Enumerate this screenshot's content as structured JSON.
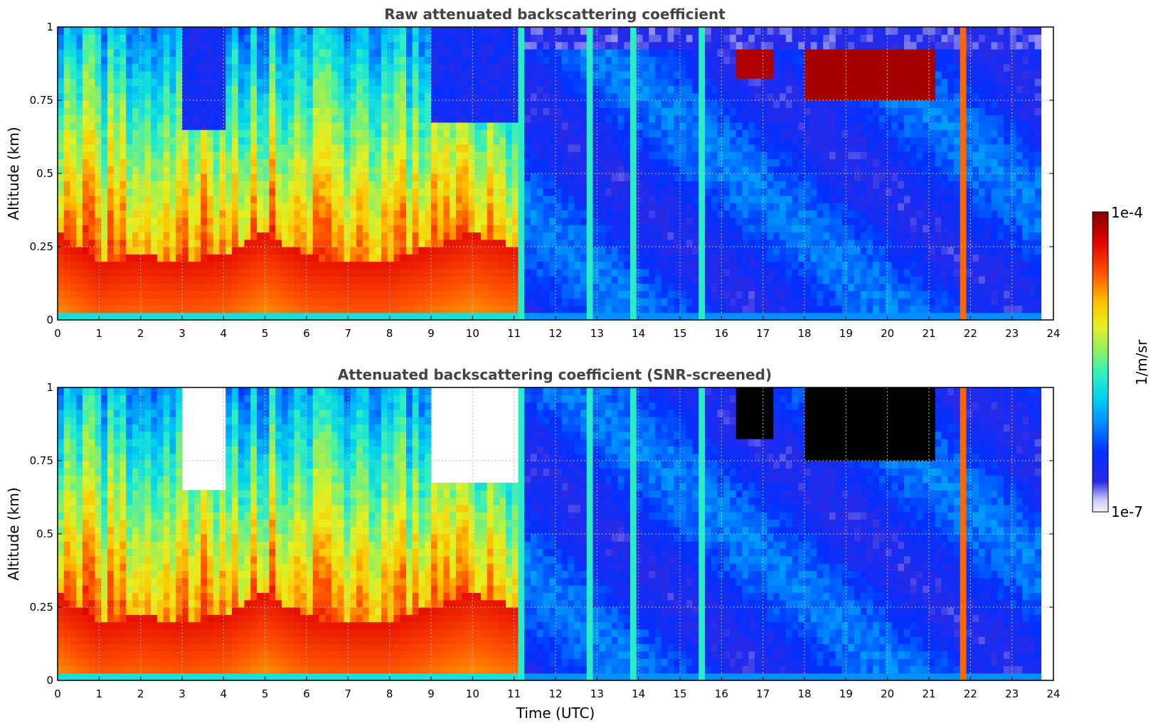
{
  "chart_data": {
    "type": "heatmap",
    "panels": [
      {
        "id": "raw",
        "title": "Raw attenuated backscattering coefficient",
        "ylabel": "Altitude (km)",
        "xlabel": "",
        "xlim": [
          0,
          24
        ],
        "ylim": [
          0,
          1
        ],
        "xticks": [
          "0",
          "1",
          "2",
          "3",
          "4",
          "5",
          "6",
          "7",
          "8",
          "9",
          "10",
          "11",
          "12",
          "13",
          "14",
          "15",
          "16",
          "17",
          "18",
          "19",
          "20",
          "21",
          "22",
          "23",
          "24"
        ],
        "yticks": [
          "0",
          "0.25",
          "0.5",
          "0.75",
          "1"
        ],
        "grid": true
      },
      {
        "id": "screened",
        "title": "Attenuated backscattering coefficient (SNR-screened)",
        "ylabel": "Altitude (km)",
        "xlabel": "Time (UTC)",
        "xlim": [
          0,
          24
        ],
        "ylim": [
          0,
          1
        ],
        "xticks": [
          "0",
          "1",
          "2",
          "3",
          "4",
          "5",
          "6",
          "7",
          "8",
          "9",
          "10",
          "11",
          "12",
          "13",
          "14",
          "15",
          "16",
          "17",
          "18",
          "19",
          "20",
          "21",
          "22",
          "23",
          "24"
        ],
        "yticks": [
          "0",
          "0.25",
          "0.5",
          "0.75",
          "1"
        ],
        "grid": true
      }
    ],
    "colorbar": {
      "label": "1/m/sr",
      "max_label": "1e-4",
      "min_label": "1e-7",
      "scale": "log",
      "range": [
        1e-07,
        0.0001
      ]
    },
    "features": {
      "boundary_layer_top_km": [
        [
          0,
          0.3
        ],
        [
          1,
          0.2
        ],
        [
          2,
          0.22
        ],
        [
          3,
          0.2
        ],
        [
          4,
          0.22
        ],
        [
          5,
          0.3
        ],
        [
          6,
          0.22
        ],
        [
          7,
          0.2
        ],
        [
          8,
          0.2
        ],
        [
          9,
          0.25
        ],
        [
          10,
          0.3
        ],
        [
          11,
          0.25
        ]
      ],
      "bright_columns_utc": [
        11.2,
        12.8,
        13.9,
        15.5,
        21.8
      ],
      "upper_cloud_utc": [
        18.0,
        21.2
      ],
      "data_end_utc": 23.7
    }
  }
}
